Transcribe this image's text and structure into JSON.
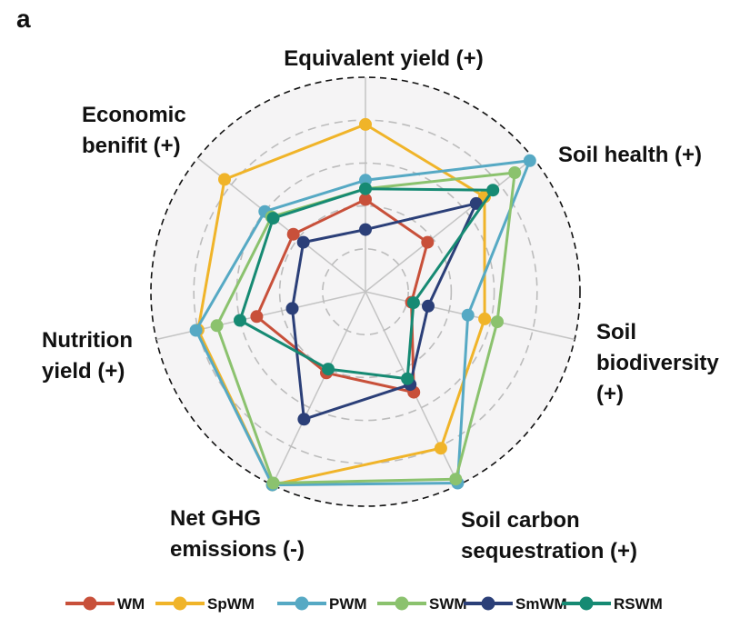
{
  "panel_label": "a",
  "chart_data": {
    "type": "radar",
    "axes": [
      {
        "lines": [
          "Equivalent yield (+)"
        ]
      },
      {
        "lines": [
          "Soil health (+)"
        ]
      },
      {
        "lines": [
          "Soil",
          "biodiversity",
          "(+)"
        ]
      },
      {
        "lines": [
          "Soil carbon",
          "sequestration (+)"
        ]
      },
      {
        "lines": [
          "Net GHG",
          "emissions (-)"
        ]
      },
      {
        "lines": [
          "Nutrition",
          "yield (+)"
        ]
      },
      {
        "lines": [
          "Economic",
          "benifit (+)"
        ]
      }
    ],
    "range": [
      0,
      1
    ],
    "series": [
      {
        "name": "WM",
        "color": "#c8503a",
        "values": [
          0.43,
          0.37,
          0.22,
          0.52,
          0.42,
          0.52,
          0.43
        ]
      },
      {
        "name": "SpWM",
        "color": "#f0b429",
        "values": [
          0.78,
          0.71,
          0.57,
          0.81,
          1.0,
          0.8,
          0.84
        ]
      },
      {
        "name": "PWM",
        "color": "#56a9c4",
        "values": [
          0.52,
          0.98,
          0.49,
          0.99,
          1.0,
          0.81,
          0.6
        ]
      },
      {
        "name": "SWM",
        "color": "#8bc26e",
        "values": [
          0.48,
          0.89,
          0.63,
          0.97,
          0.99,
          0.71,
          0.56
        ]
      },
      {
        "name": "SmWM",
        "color": "#2b3f78",
        "values": [
          0.29,
          0.66,
          0.3,
          0.48,
          0.66,
          0.35,
          0.37
        ]
      },
      {
        "name": "RSWM",
        "color": "#168a73",
        "values": [
          0.48,
          0.76,
          0.23,
          0.45,
          0.4,
          0.6,
          0.55
        ]
      }
    ]
  }
}
